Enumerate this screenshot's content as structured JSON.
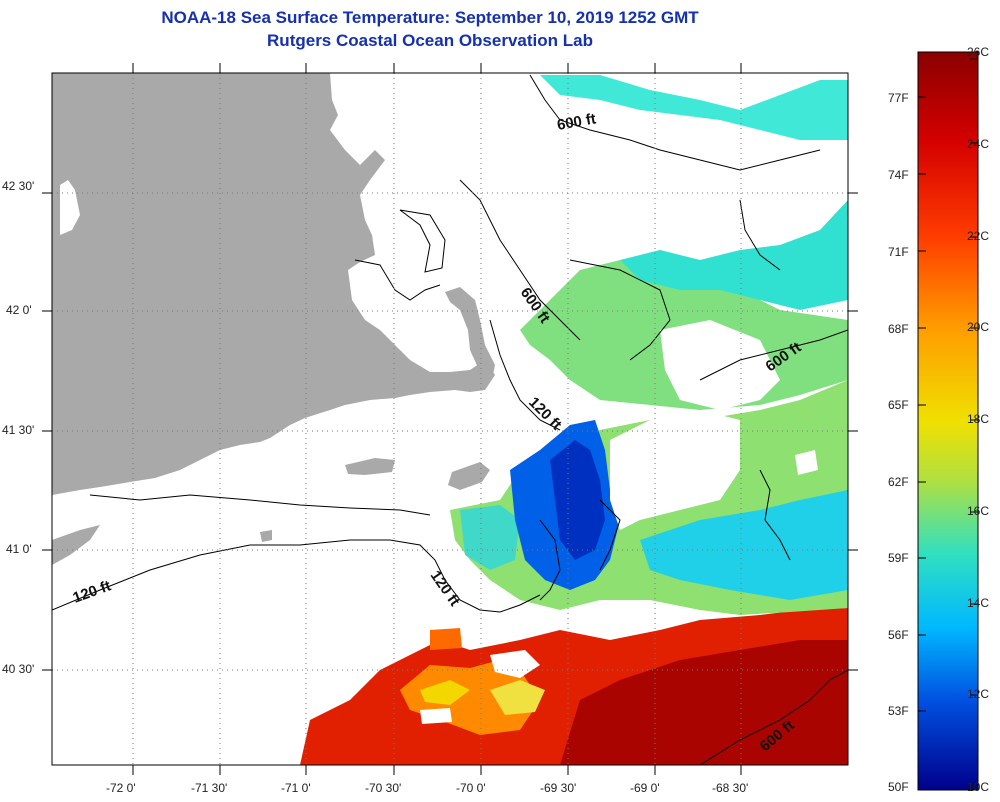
{
  "title": {
    "line1": "NOAA-18 Sea Surface Temperature:  September 10, 2019 1252 GMT",
    "line2": "Rutgers Coastal Ocean Observation Lab"
  },
  "map": {
    "lon_ticks": [
      "-72 0'",
      "-71 30'",
      "-71 0'",
      "-70 30'",
      "-70 0'",
      "-69 30'",
      "-69 0'",
      "-68 30'"
    ],
    "lat_ticks": [
      "42 30'",
      "42 0'",
      "41 30'",
      "41 0'",
      "40 30'"
    ],
    "contour_labels": [
      "600 ft",
      "600 ft",
      "600 ft",
      "600 ft",
      "120 ft",
      "120 ft",
      "120 ft"
    ],
    "land_color": "#a9a9a9",
    "cloud_color": "#ffffff"
  },
  "colorbar": {
    "celsius": [
      "26C",
      "24C",
      "22C",
      "20C",
      "18C",
      "16C",
      "14C",
      "12C",
      "10C"
    ],
    "fahrenheit": [
      "77F",
      "74F",
      "71F",
      "68F",
      "65F",
      "62F",
      "59F",
      "56F",
      "53F",
      "50F"
    ],
    "colors": [
      "#8b0000",
      "#e81a00",
      "#ff7a00",
      "#ffd400",
      "#b0e040",
      "#2fe0d0",
      "#00b0ff",
      "#0050e0",
      "#00008b"
    ]
  }
}
